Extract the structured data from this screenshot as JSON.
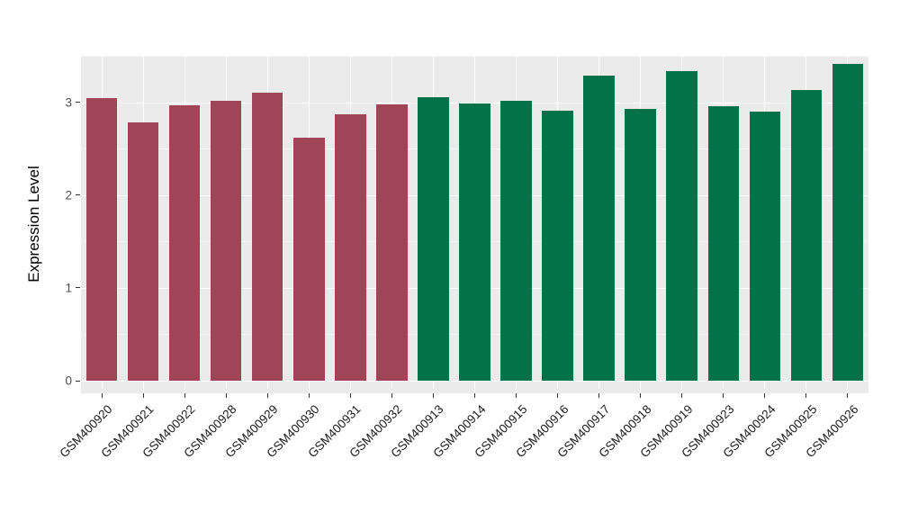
{
  "chart_data": {
    "type": "bar",
    "title": "",
    "xlabel": "",
    "ylabel": "Expression Level",
    "ylim": [
      0,
      3.5
    ],
    "yticks": [
      0,
      1,
      2,
      3
    ],
    "grid": "on",
    "legend": "none",
    "plot_background": "#ebebeb",
    "grid_color": "#ffffff",
    "group_colors": {
      "groupA": "#a04457",
      "groupB": "#03714a"
    },
    "bars": [
      {
        "label": "GSM400920",
        "value": 3.04,
        "group": "groupA"
      },
      {
        "label": "GSM400921",
        "value": 2.78,
        "group": "groupA"
      },
      {
        "label": "GSM400922",
        "value": 2.97,
        "group": "groupA"
      },
      {
        "label": "GSM400928",
        "value": 3.02,
        "group": "groupA"
      },
      {
        "label": "GSM400929",
        "value": 3.1,
        "group": "groupA"
      },
      {
        "label": "GSM400930",
        "value": 2.62,
        "group": "groupA"
      },
      {
        "label": "GSM400931",
        "value": 2.87,
        "group": "groupA"
      },
      {
        "label": "GSM400932",
        "value": 2.98,
        "group": "groupA"
      },
      {
        "label": "GSM400913",
        "value": 3.05,
        "group": "groupB"
      },
      {
        "label": "GSM400914",
        "value": 2.99,
        "group": "groupB"
      },
      {
        "label": "GSM400915",
        "value": 3.02,
        "group": "groupB"
      },
      {
        "label": "GSM400916",
        "value": 2.91,
        "group": "groupB"
      },
      {
        "label": "GSM400917",
        "value": 3.29,
        "group": "groupB"
      },
      {
        "label": "GSM400918",
        "value": 2.93,
        "group": "groupB"
      },
      {
        "label": "GSM400919",
        "value": 3.34,
        "group": "groupB"
      },
      {
        "label": "GSM400923",
        "value": 2.96,
        "group": "groupB"
      },
      {
        "label": "GSM400924",
        "value": 2.9,
        "group": "groupB"
      },
      {
        "label": "GSM400925",
        "value": 3.13,
        "group": "groupB"
      },
      {
        "label": "GSM400926",
        "value": 3.41,
        "group": "groupB"
      }
    ]
  }
}
